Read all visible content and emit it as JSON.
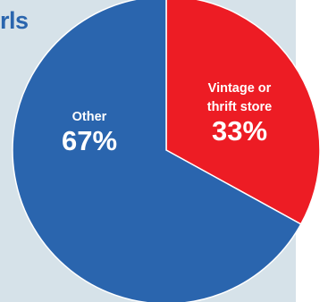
{
  "header": {
    "title_fragment": "rls"
  },
  "chart_data": {
    "type": "pie",
    "slices": [
      {
        "label_lines": [
          "Vintage or",
          "thrift store"
        ],
        "value": 33,
        "value_label": "33%",
        "color": "#ed1c24"
      },
      {
        "label_lines": [
          "Other"
        ],
        "value": 67,
        "value_label": "67%",
        "color": "#2a65ae"
      }
    ],
    "start_angle_deg": 0,
    "direction": "clockwise",
    "slice_border_color": "#ffffff",
    "panel_color": "#d6e2e9",
    "legend": "none"
  }
}
